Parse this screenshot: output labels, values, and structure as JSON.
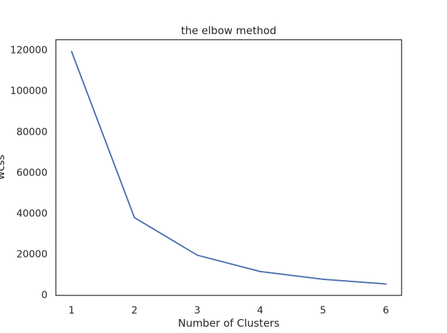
{
  "chart_data": {
    "type": "line",
    "title": "the elbow method",
    "xlabel": "Number of Clusters",
    "ylabel": "wcss",
    "x": [
      1,
      2,
      3,
      4,
      5,
      6
    ],
    "series": [
      {
        "values": [
          119200,
          37800,
          19400,
          11400,
          7600,
          5300
        ],
        "color": "#4c72b0"
      }
    ],
    "xticks": [
      "1",
      "2",
      "3",
      "4",
      "5",
      "6"
    ],
    "yticks": [
      "0",
      "20000",
      "40000",
      "60000",
      "80000",
      "100000",
      "120000"
    ],
    "xlim": [
      0.75,
      6.25
    ],
    "ylim": [
      -300,
      125000
    ],
    "grid": false
  }
}
